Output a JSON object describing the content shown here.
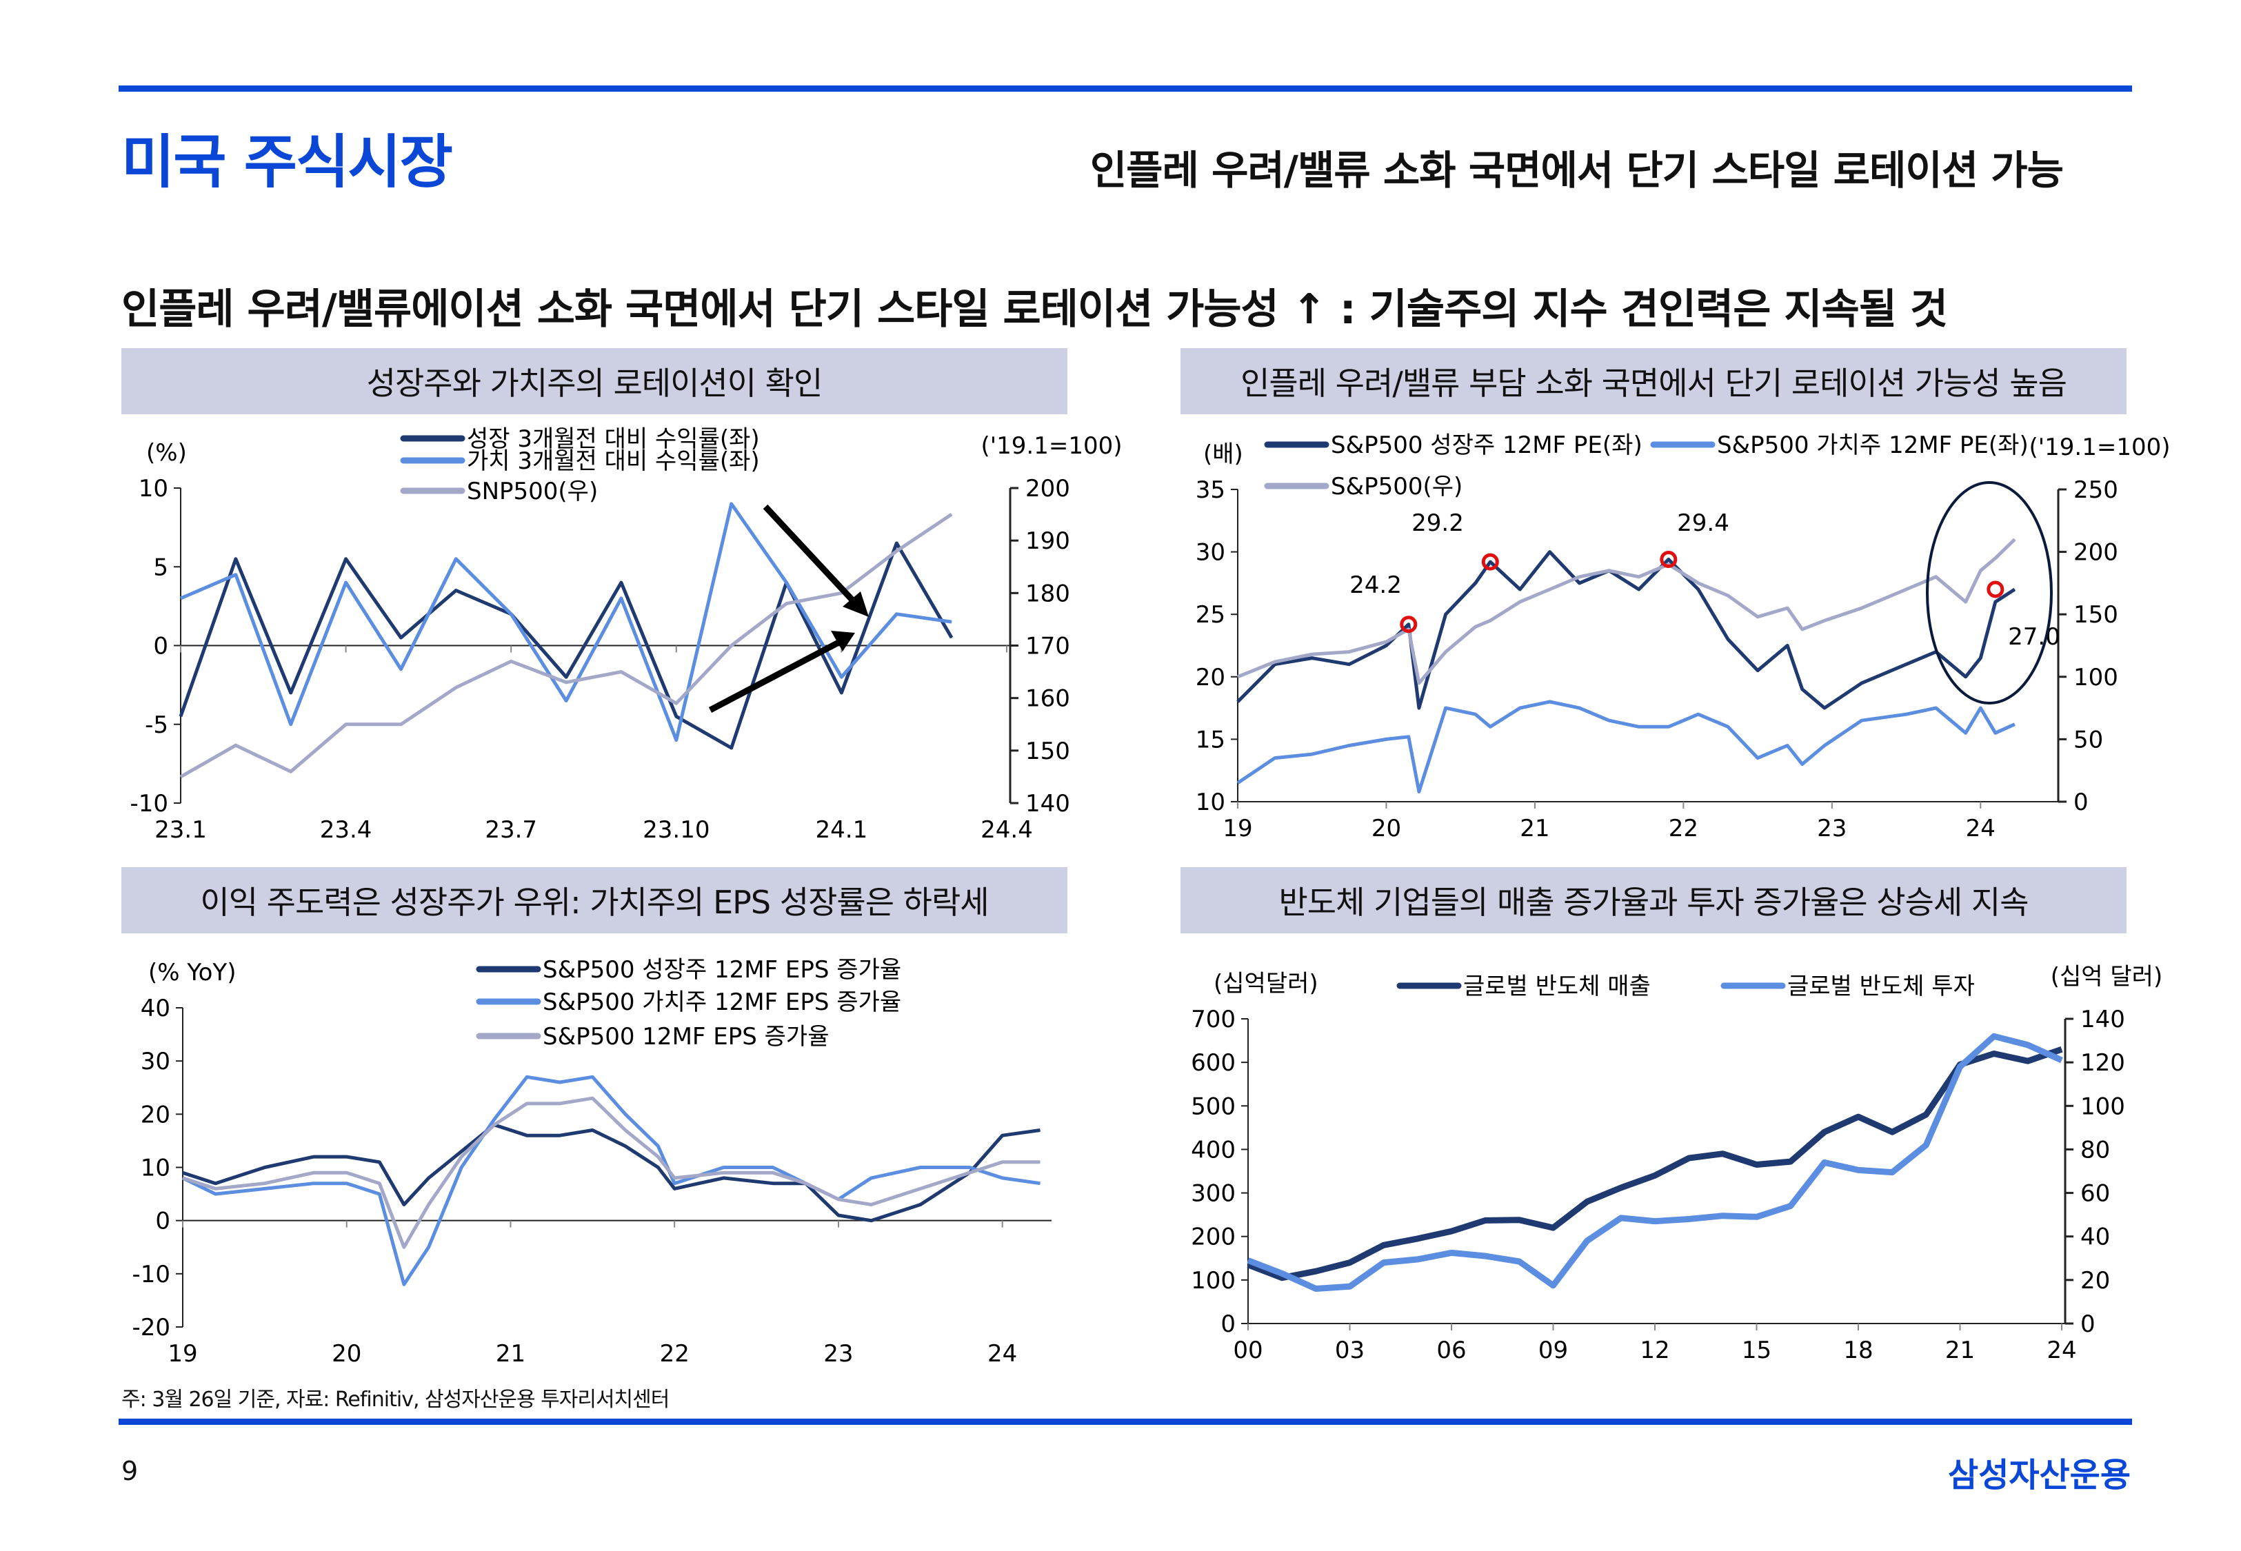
{
  "header": {
    "title": "미국 주식시장",
    "subtitle": "인플레 우려/밸류 소화 국면에서 단기 스타일 로테이션 가능",
    "headline": "인플레 우려/밸류에이션 소화 국면에서 단기 스타일 로테이션 가능성 ↑ : 기술주의 지수 견인력은 지속될 것"
  },
  "footer": {
    "note": "주: 3월 26일 기준, 자료: Refinitiv, 삼성자산운용 투자리서치센터",
    "page": "9",
    "brand": "삼성자산운용"
  },
  "colors": {
    "brand": "#0a47d6",
    "growth": "#1f3a70",
    "value": "#5b8de0",
    "index": "#a3a8c8",
    "panel": "#ccd0e2"
  },
  "chart_data": [
    {
      "type": "line",
      "title": "성장주와 가치주의 로테이션이 확인",
      "ylabel_left": "(%)",
      "ylabel_right": "('19.1=100)",
      "ylim_left": [
        -10,
        10
      ],
      "ylim_right": [
        140,
        200
      ],
      "yticks_left": [
        "10",
        "5",
        "0",
        "-5",
        "-10"
      ],
      "yticks_right": [
        "200",
        "190",
        "180",
        "170",
        "160",
        "150",
        "140"
      ],
      "xticks": [
        "23.1",
        "23.4",
        "23.7",
        "23.10",
        "24.1",
        "24.4"
      ],
      "x": [
        "23.1",
        "23.2",
        "23.3",
        "23.4",
        "23.5",
        "23.6",
        "23.7",
        "23.8",
        "23.9",
        "23.10",
        "23.11",
        "23.12",
        "24.1",
        "24.2",
        "24.3"
      ],
      "series": [
        {
          "name": "성장 3개월전 대비 수익률(좌)",
          "axis": "left",
          "values": [
            -4.5,
            5.5,
            -3.0,
            5.5,
            0.5,
            3.5,
            2.0,
            -2.0,
            4.0,
            -4.5,
            -6.5,
            4.0,
            -3.0,
            6.5,
            0.5
          ]
        },
        {
          "name": "가치 3개월전 대비 수익률(좌)",
          "axis": "left",
          "values": [
            3.0,
            4.5,
            -5.0,
            4.0,
            -1.5,
            5.5,
            2.0,
            -3.5,
            3.0,
            -6.0,
            9.0,
            4.0,
            -2.0,
            2.0,
            1.5
          ]
        },
        {
          "name": "SNP500(우)",
          "axis": "right",
          "values": [
            145,
            151,
            146,
            155,
            155,
            162,
            167,
            163,
            165,
            159,
            170,
            178,
            180,
            188,
            195
          ]
        }
      ],
      "annotations": [
        "down-arrow",
        "up-arrow"
      ]
    },
    {
      "type": "line",
      "title": "인플레 우려/밸류 부담 소화 국면에서 단기 로테이션 가능성 높음",
      "ylabel_left": "(배)",
      "ylabel_right": "('19.1=100)",
      "ylim_left": [
        10,
        35
      ],
      "ylim_right": [
        0,
        250
      ],
      "yticks_left": [
        "35",
        "30",
        "25",
        "20",
        "15",
        "10"
      ],
      "yticks_right": [
        "250",
        "200",
        "150",
        "100",
        "50",
        "0"
      ],
      "xticks": [
        "19",
        "20",
        "21",
        "22",
        "23",
        "24"
      ],
      "x": [
        2019.0,
        2019.25,
        2019.5,
        2019.75,
        2020.0,
        2020.15,
        2020.22,
        2020.4,
        2020.6,
        2020.7,
        2020.9,
        2021.1,
        2021.3,
        2021.5,
        2021.7,
        2021.9,
        2022.1,
        2022.3,
        2022.5,
        2022.7,
        2022.8,
        2022.95,
        2023.2,
        2023.5,
        2023.7,
        2023.9,
        2024.0,
        2024.1,
        2024.23
      ],
      "series": [
        {
          "name": "S&P500 성장주 12MF PE(좌)",
          "axis": "left",
          "values": [
            18.0,
            21.0,
            21.5,
            21.0,
            22.5,
            24.2,
            17.5,
            25.0,
            27.5,
            29.2,
            27.0,
            30.0,
            27.5,
            28.5,
            27.0,
            29.4,
            27.0,
            23.0,
            20.5,
            22.5,
            19.0,
            17.5,
            19.5,
            21.0,
            22.0,
            20.0,
            21.5,
            26.0,
            27.0
          ]
        },
        {
          "name": "S&P500 가치주 12MF PE(좌)",
          "axis": "left",
          "values": [
            11.5,
            13.5,
            13.8,
            14.5,
            15.0,
            15.2,
            10.8,
            17.5,
            17.0,
            16.0,
            17.5,
            18.0,
            17.5,
            16.5,
            16.0,
            16.0,
            17.0,
            16.0,
            13.5,
            14.5,
            13.0,
            14.5,
            16.5,
            17.0,
            17.5,
            15.5,
            17.5,
            15.5,
            16.2
          ]
        },
        {
          "name": "S&P500(우)",
          "axis": "right",
          "values": [
            100,
            112,
            118,
            120,
            128,
            138,
            95,
            120,
            140,
            145,
            160,
            170,
            180,
            185,
            180,
            190,
            175,
            165,
            148,
            155,
            138,
            145,
            155,
            170,
            180,
            160,
            185,
            195,
            210
          ]
        }
      ],
      "annotations": [
        "24.2",
        "29.2",
        "29.4",
        "27.0"
      ]
    },
    {
      "type": "line",
      "title": "이익 주도력은 성장주가 우위: 가치주의 EPS 성장률은 하락세",
      "ylabel": "(% YoY)",
      "ylim": [
        -20,
        40
      ],
      "yticks": [
        "40",
        "30",
        "20",
        "10",
        "0",
        "-10",
        "-20"
      ],
      "xticks": [
        "19",
        "20",
        "21",
        "22",
        "23",
        "24"
      ],
      "x": [
        2019.0,
        2019.2,
        2019.5,
        2019.8,
        2020.0,
        2020.2,
        2020.35,
        2020.5,
        2020.7,
        2020.9,
        2021.1,
        2021.3,
        2021.5,
        2021.7,
        2021.9,
        2022.0,
        2022.3,
        2022.6,
        2022.8,
        2023.0,
        2023.2,
        2023.5,
        2023.8,
        2024.0,
        2024.23
      ],
      "series": [
        {
          "name": "S&P500 성장주 12MF EPS 증가율",
          "values": [
            9,
            7,
            10,
            12,
            12,
            11,
            3,
            8,
            13,
            18,
            16,
            16,
            17,
            14,
            10,
            6,
            8,
            7,
            7,
            1,
            0,
            3,
            9,
            16,
            17
          ]
        },
        {
          "name": "S&P500 가치주 12MF EPS 증가율",
          "values": [
            8,
            5,
            6,
            7,
            7,
            5,
            -12,
            -5,
            10,
            19,
            27,
            26,
            27,
            20,
            14,
            7,
            10,
            10,
            7,
            4,
            8,
            10,
            10,
            8,
            7
          ]
        },
        {
          "name": "S&P500 12MF EPS 증가율",
          "values": [
            8,
            6,
            7,
            9,
            9,
            7,
            -5,
            3,
            12,
            18,
            22,
            22,
            23,
            17,
            12,
            8,
            9,
            9,
            7,
            4,
            3,
            6,
            9,
            11,
            11
          ]
        }
      ]
    },
    {
      "type": "line",
      "title": "반도체 기업들의 매출 증가율과 투자 증가율은 상승세 지속",
      "ylabel_left": "(십억달러)",
      "ylabel_right": "(십억 달러)",
      "ylim_left": [
        0,
        700
      ],
      "ylim_right": [
        0,
        140
      ],
      "yticks_left": [
        "700",
        "600",
        "500",
        "400",
        "300",
        "200",
        "100",
        "0"
      ],
      "yticks_right": [
        "140",
        "120",
        "100",
        "80",
        "60",
        "40",
        "20",
        "0"
      ],
      "xticks": [
        "00",
        "03",
        "06",
        "09",
        "12",
        "15",
        "18",
        "21",
        "24"
      ],
      "x": [
        2000,
        2001,
        2002,
        2003,
        2004,
        2005,
        2006,
        2007,
        2008,
        2009,
        2010,
        2011,
        2012,
        2013,
        2014,
        2015,
        2016,
        2017,
        2018,
        2019,
        2020,
        2021,
        2022,
        2023,
        2024
      ],
      "series": [
        {
          "name": "글로벌 반도체 매출",
          "axis": "left",
          "values": [
            135,
            105,
            120,
            140,
            180,
            195,
            212,
            237,
            238,
            220,
            280,
            312,
            340,
            380,
            390,
            365,
            372,
            440,
            475,
            440,
            480,
            595,
            620,
            603,
            630
          ]
        },
        {
          "name": "글로벌 반도체 투자",
          "axis": "right",
          "values": [
            29,
            23,
            16,
            17,
            28,
            29.5,
            32.5,
            31,
            28.5,
            17.5,
            38,
            48.5,
            47,
            48,
            49.5,
            49,
            54,
            74,
            70.5,
            69.5,
            82,
            118,
            132,
            128,
            121
          ]
        }
      ]
    }
  ]
}
